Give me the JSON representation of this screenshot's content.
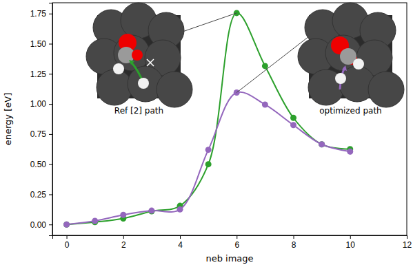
{
  "chart_data": {
    "type": "line",
    "xlabel": "neb image",
    "ylabel": "energy [eV]",
    "x": [
      0,
      1,
      2,
      3,
      4,
      5,
      6,
      7,
      8,
      9,
      10
    ],
    "xlim": [
      -0.5,
      12
    ],
    "xticks": [
      0,
      2,
      4,
      6,
      8,
      10,
      12
    ],
    "ylim": [
      -0.09,
      1.84
    ],
    "yticks": [
      {
        "value": 0,
        "label": "0.00"
      },
      {
        "value": 0.25,
        "label": "0.25"
      },
      {
        "value": 0.5,
        "label": "0.50"
      },
      {
        "value": 0.75,
        "label": "0.75"
      },
      {
        "value": 1,
        "label": "1.00"
      },
      {
        "value": 1.25,
        "label": "1.25"
      },
      {
        "value": 1.5,
        "label": "1.50"
      },
      {
        "value": 1.75,
        "label": "1.75"
      }
    ],
    "series": [
      {
        "name": "Ref [2] path",
        "color": "#2ca02c",
        "marker": "circle",
        "values": [
          0.0,
          0.02,
          0.05,
          0.11,
          0.155,
          0.5,
          1.755,
          1.315,
          0.885,
          0.665,
          0.625
        ]
      },
      {
        "name": "optimized path",
        "color": "#9467bd",
        "marker": "circle",
        "values": [
          0.0,
          0.03,
          0.08,
          0.115,
          0.125,
          0.62,
          1.095,
          0.995,
          0.825,
          0.665,
          0.605
        ]
      }
    ]
  }
}
